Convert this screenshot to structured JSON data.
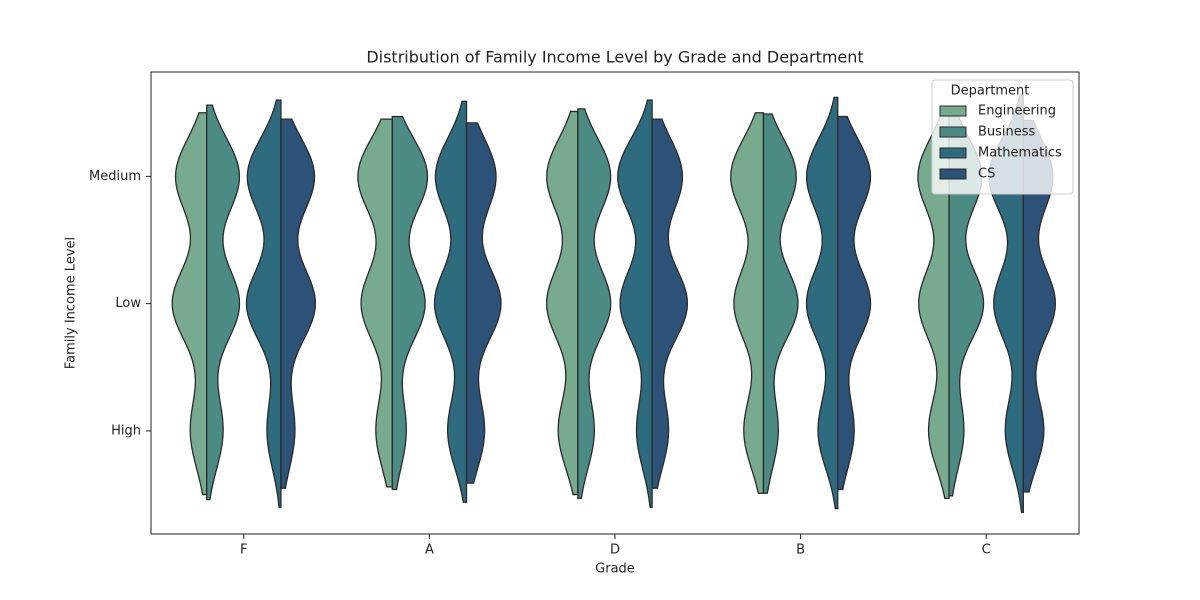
{
  "chart_data": {
    "type": "violin",
    "title": "Distribution of Family Income Level by Grade and Department",
    "x_label": "Grade",
    "y_label": "Family Income Level",
    "categories": [
      "F",
      "A",
      "D",
      "B",
      "C"
    ],
    "ylim": [
      -0.81,
      2.82
    ],
    "yticks": [
      {
        "value": 0,
        "label": "High"
      },
      {
        "value": 1,
        "label": "Low"
      },
      {
        "value": 2,
        "label": "Medium"
      }
    ],
    "legend_title": "Department",
    "legend_position": "upper right",
    "series": [
      {
        "name": "Engineering",
        "color": "#77aa8e",
        "values": [
          [
            0.2,
            0.42,
            0.38
          ],
          [
            0.2,
            0.38,
            0.42
          ],
          [
            0.24,
            0.38,
            0.38
          ],
          [
            0.24,
            0.36,
            0.4
          ],
          [
            0.25,
            0.37,
            0.38
          ]
        ],
        "extents": [
          [
            -0.5,
            2.5
          ],
          [
            -0.44,
            2.45
          ],
          [
            -0.5,
            2.51
          ],
          [
            -0.49,
            2.5
          ],
          [
            -0.53,
            2.49
          ]
        ]
      },
      {
        "name": "Business",
        "color": "#4b8b84",
        "values": [
          [
            0.2,
            0.4,
            0.4
          ],
          [
            0.17,
            0.4,
            0.43
          ],
          [
            0.2,
            0.4,
            0.4
          ],
          [
            0.18,
            0.42,
            0.4
          ],
          [
            0.18,
            0.42,
            0.4
          ]
        ],
        "extents": [
          [
            -0.54,
            2.56
          ],
          [
            -0.46,
            2.47
          ],
          [
            -0.53,
            2.53
          ],
          [
            -0.49,
            2.49
          ],
          [
            -0.51,
            2.52
          ]
        ]
      },
      {
        "name": "Mathematics",
        "color": "#2e6b7e",
        "values": [
          [
            0.17,
            0.42,
            0.41
          ],
          [
            0.23,
            0.39,
            0.38
          ],
          [
            0.19,
            0.39,
            0.42
          ],
          [
            0.24,
            0.38,
            0.38
          ],
          [
            0.22,
            0.36,
            0.42
          ]
        ],
        "extents": [
          [
            -0.6,
            2.6
          ],
          [
            -0.56,
            2.59
          ],
          [
            -0.6,
            2.6
          ],
          [
            -0.61,
            2.62
          ],
          [
            -0.64,
            2.64
          ]
        ]
      },
      {
        "name": "CS",
        "color": "#2d5278",
        "values": [
          [
            0.17,
            0.42,
            0.41
          ],
          [
            0.22,
            0.42,
            0.36
          ],
          [
            0.2,
            0.43,
            0.37
          ],
          [
            0.2,
            0.4,
            0.4
          ],
          [
            0.25,
            0.39,
            0.36
          ]
        ],
        "extents": [
          [
            -0.45,
            2.45
          ],
          [
            -0.41,
            2.42
          ],
          [
            -0.45,
            2.45
          ],
          [
            -0.46,
            2.47
          ],
          [
            -0.48,
            2.44
          ]
        ]
      }
    ]
  }
}
